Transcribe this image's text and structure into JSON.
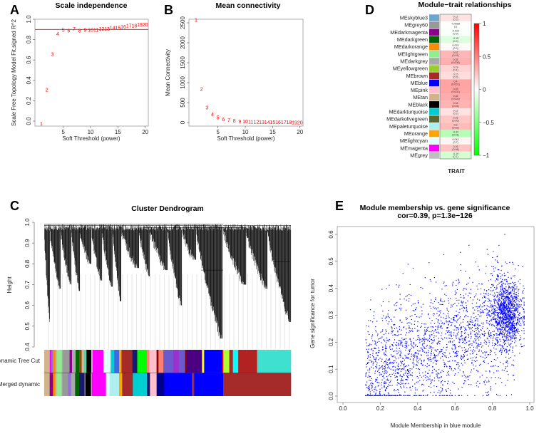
{
  "panels": {
    "A": "A",
    "B": "B",
    "C": "C",
    "D": "D",
    "E": "E"
  },
  "chart_data": [
    {
      "id": "A",
      "type": "scatter",
      "title": "Scale independence",
      "xlabel": "Soft Threshold (power)",
      "ylabel": "Scale Free Topology Model Fit,signed R^2",
      "xlim": [
        0.5,
        20.5
      ],
      "ylim": [
        -0.03,
        1.0
      ],
      "xticks": [
        "5",
        "10",
        "15",
        "20"
      ],
      "yticks": [
        "0.0",
        "0.2",
        "0.4",
        "0.6",
        "0.8",
        "1.0"
      ],
      "x": [
        1,
        2,
        3,
        4,
        5,
        6,
        7,
        8,
        9,
        10,
        11,
        12,
        13,
        14,
        15,
        16,
        17,
        18,
        19,
        20
      ],
      "y": [
        -0.02,
        0.31,
        0.66,
        0.86,
        0.9,
        0.89,
        0.91,
        0.89,
        0.9,
        0.9,
        0.9,
        0.91,
        0.91,
        0.92,
        0.92,
        0.93,
        0.94,
        0.94,
        0.95,
        0.95
      ],
      "hline": 0.9,
      "color": "#ff0000"
    },
    {
      "id": "B",
      "type": "scatter",
      "title": "Mean connectivity",
      "xlabel": "Soft Threshold (power)",
      "ylabel": "Mean Connectivity",
      "xlim": [
        0.5,
        20.5
      ],
      "ylim": [
        -50,
        2650
      ],
      "xticks": [
        "5",
        "10",
        "15",
        "20"
      ],
      "yticks": [
        "0",
        "500",
        "1000",
        "1500",
        "2000",
        "2500"
      ],
      "x": [
        1,
        2,
        3,
        4,
        5,
        6,
        7,
        8,
        9,
        10,
        11,
        12,
        13,
        14,
        15,
        16,
        17,
        18,
        19,
        20
      ],
      "y": [
        2580,
        850,
        380,
        210,
        130,
        90,
        70,
        50,
        40,
        32,
        28,
        25,
        22,
        20,
        18,
        16,
        15,
        14,
        13,
        12
      ],
      "color": "#ff0000"
    },
    {
      "id": "C",
      "type": "dendrogram",
      "title": "Cluster Dendrogram",
      "ylabel": "Height",
      "ylim": [
        0.4,
        1.0
      ],
      "yticks": [
        "0.4",
        "0.5",
        "0.6",
        "0.7",
        "0.8",
        "0.9",
        "1.0"
      ],
      "rows": [
        {
          "label": "Dynamic Tree Cut",
          "segments": [
            [
              "#d2b48c",
              23
            ],
            [
              "#ff00ff",
              7
            ],
            [
              "#9370db",
              7
            ],
            [
              "#ff8c00",
              10
            ],
            [
              "#d2b48c",
              6
            ],
            [
              "#90ee90",
              20
            ],
            [
              "#a9a9a9",
              4
            ],
            [
              "#999999",
              28
            ],
            [
              "#8b008b",
              10
            ],
            [
              "#a9a9a9",
              15
            ],
            [
              "#006400",
              15
            ],
            [
              "#8b4513",
              10
            ],
            [
              "#d2b48c",
              10
            ],
            [
              "#66cdaa",
              10
            ],
            [
              "#000000",
              20
            ],
            [
              "#cccccc",
              5
            ],
            [
              "#ff00ff",
              45
            ],
            [
              "#e0ffff",
              30
            ],
            [
              "#00ced1",
              15
            ],
            [
              "#4169e1",
              20
            ],
            [
              "#ffa500",
              10
            ],
            [
              "#a52a2a",
              45
            ],
            [
              "#191970",
              20
            ],
            [
              "#00ff00",
              40
            ],
            [
              "#fa8072",
              10
            ],
            [
              "#ffc0cb",
              30
            ],
            [
              "#8b0000",
              8
            ],
            [
              "#fa8072",
              20
            ],
            [
              "#6a5acd",
              40
            ],
            [
              "#9932cc",
              25
            ],
            [
              "#6a5acd",
              25
            ],
            [
              "#8b0000",
              7
            ],
            [
              "#4b0082",
              63
            ],
            [
              "#ffff00",
              9
            ],
            [
              "#0000ff",
              74
            ],
            [
              "#ff0000",
              5
            ],
            [
              "#adff2f",
              25
            ],
            [
              "#a52a2a",
              15
            ],
            [
              "#00ffff",
              22
            ],
            [
              "#b22222",
              73
            ],
            [
              "#ff0000",
              5
            ],
            [
              "#40e0d0",
              140
            ]
          ]
        },
        {
          "label": "Merged dynamic",
          "segments": [
            [
              "#d2b48c",
              23
            ],
            [
              "#8b008b",
              14
            ],
            [
              "#ff8c00",
              10
            ],
            [
              "#d2b48c",
              6
            ],
            [
              "#90ee90",
              20
            ],
            [
              "#a9a9a9",
              4
            ],
            [
              "#999999",
              23
            ],
            [
              "#9370db",
              13
            ],
            [
              "#a9a9a9",
              17
            ],
            [
              "#006400",
              17
            ],
            [
              "#191970",
              23
            ],
            [
              "#d2b48c",
              3
            ],
            [
              "#000000",
              24
            ],
            [
              "#cccccc",
              3
            ],
            [
              "#ff00ff",
              60
            ],
            [
              "#e0ffff",
              15
            ],
            [
              "#afeeee",
              40
            ],
            [
              "#ffa500",
              13
            ],
            [
              "#a52a2a",
              45
            ],
            [
              "#00ced1",
              60
            ],
            [
              "#191970",
              12
            ],
            [
              "#ffc0cb",
              28
            ],
            [
              "#00008b",
              32
            ],
            [
              "#0000ff",
              116
            ],
            [
              "#a52a2a",
              10
            ],
            [
              "#0000ff",
              122
            ],
            [
              "#a52a2a",
              285
            ]
          ]
        }
      ]
    },
    {
      "id": "D",
      "type": "heatmap",
      "title": "Module−trait relationships",
      "xlabel": "TRAIT",
      "colorbar_ticks": [
        "1",
        "0.5",
        "0",
        "−0.5",
        "−1"
      ],
      "colorbar_range": [
        -1,
        1
      ],
      "rows": [
        {
          "module": "MEskyblue3",
          "color": "#6ca6cd",
          "cor": "0.12",
          "p": "(0.3)",
          "v": 0.12
        },
        {
          "module": "MEgrey60",
          "color": "#999999",
          "cor": "-0.0088",
          "p": "(1)",
          "v": -0.0088
        },
        {
          "module": "MEdarkmagenta",
          "color": "#8b008b",
          "cor": "-0.022",
          "p": "(0.9)",
          "v": -0.022
        },
        {
          "module": "MEdarkgreen",
          "color": "#006400",
          "cor": "-0.15",
          "p": "(0.3)",
          "v": -0.15
        },
        {
          "module": "MEdarkorange",
          "color": "#ff8c00",
          "cor": "0.023",
          "p": "(0.9)",
          "v": 0.023
        },
        {
          "module": "MElightgreen",
          "color": "#90ee90",
          "cor": "0.32",
          "p": "(0.01)",
          "v": 0.32
        },
        {
          "module": "MEdarkgrey",
          "color": "#a9a9a9",
          "cor": "0.35",
          "p": "(0.008)",
          "v": 0.35
        },
        {
          "module": "MEyellowgreen",
          "color": "#9acd32",
          "cor": "0.19",
          "p": "(0.1)",
          "v": 0.19
        },
        {
          "module": "MEbrown",
          "color": "#a52a2a",
          "cor": "0.15",
          "p": "(0.3)",
          "v": 0.15
        },
        {
          "module": "MEblue",
          "color": "#0000ff",
          "cor": "0.4",
          "p": "(0.001)",
          "v": 0.4
        },
        {
          "module": "MEpink",
          "color": "#ffc0cb",
          "cor": "0.39",
          "p": "(0.002)",
          "v": 0.39
        },
        {
          "module": "MEtan",
          "color": "#d2b48c",
          "cor": "0.36",
          "p": "(0.004)",
          "v": 0.36
        },
        {
          "module": "MEblack",
          "color": "#000000",
          "cor": "0.33",
          "p": "(0.01)",
          "v": 0.33
        },
        {
          "module": "MEdarkturquoise",
          "color": "#00ced1",
          "cor": "0.12",
          "p": "(0.3)",
          "v": 0.12
        },
        {
          "module": "MEdarkolivegreen",
          "color": "#556b2f",
          "cor": "0.25",
          "p": "(0.05)",
          "v": 0.25
        },
        {
          "module": "MEpaleturquoise",
          "color": "#afeeee",
          "cor": "0.3",
          "p": "(0.02)",
          "v": 0.3
        },
        {
          "module": "MEorange",
          "color": "#ffa500",
          "cor": "-0.32",
          "p": "(0.01)",
          "v": -0.32
        },
        {
          "module": "MElightcyan",
          "color": "#e0ffff",
          "cor": "0.042",
          "p": "(0.7)",
          "v": 0.042
        },
        {
          "module": "MEmagenta",
          "color": "#ff00ff",
          "cor": "0.26",
          "p": "(0.06)",
          "v": 0.26
        },
        {
          "module": "MEgrey",
          "color": "#bebebe",
          "cor": "-0.19",
          "p": "(0.1)",
          "v": -0.19
        }
      ]
    },
    {
      "id": "E",
      "type": "scatter",
      "title": "Module membership vs. gene significance",
      "subtitle": "cor=0.39, p=1.3e−126",
      "xlabel": "Module Membership in blue module",
      "ylabel": "Gene significance for  tumor",
      "xlim": [
        0,
        1
      ],
      "ylim": [
        0,
        0.6
      ],
      "xticks": [
        "0.0",
        "0.2",
        "0.4",
        "0.6",
        "0.8",
        "1.0"
      ],
      "yticks": [
        "0.0",
        "0.1",
        "0.2",
        "0.3",
        "0.4",
        "0.5",
        "0.6"
      ],
      "cor": 0.39,
      "color": "#0000ff"
    }
  ]
}
